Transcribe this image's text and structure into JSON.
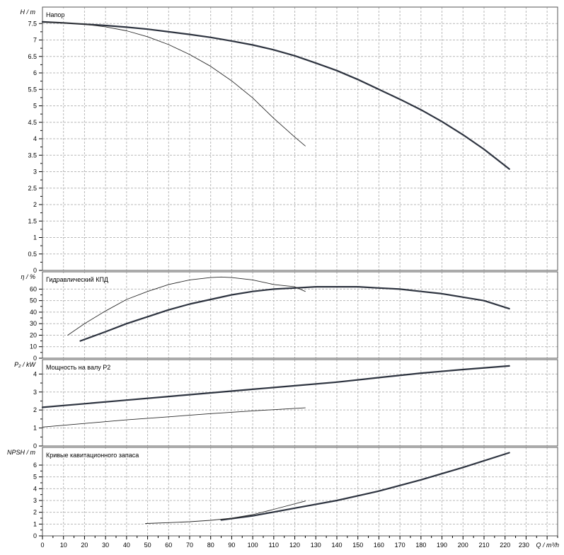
{
  "chart_data": [
    {
      "type": "line",
      "title": "Напор",
      "ylabel": "H / m",
      "ylim": [
        0,
        8
      ],
      "y_ticks": [
        "0",
        "0.5",
        "1",
        "1.5",
        "2",
        "2.5",
        "3",
        "3.5",
        "4",
        "4.5",
        "5",
        "5.5",
        "6",
        "6.5",
        "7",
        "7.5"
      ],
      "grid": true,
      "series": [
        {
          "curve": "bold",
          "x": [
            0,
            10,
            20,
            30,
            40,
            50,
            60,
            70,
            80,
            90,
            100,
            110,
            120,
            130,
            140,
            150,
            160,
            170,
            180,
            190,
            200,
            210,
            222
          ],
          "y": [
            7.55,
            7.52,
            7.48,
            7.44,
            7.39,
            7.33,
            7.25,
            7.17,
            7.08,
            6.97,
            6.85,
            6.7,
            6.52,
            6.3,
            6.07,
            5.8,
            5.5,
            5.2,
            4.88,
            4.52,
            4.12,
            3.68,
            3.08
          ]
        },
        {
          "curve": "thin",
          "x": [
            0,
            10,
            20,
            30,
            40,
            50,
            60,
            70,
            80,
            90,
            100,
            110,
            120,
            125
          ],
          "y": [
            7.55,
            7.52,
            7.48,
            7.4,
            7.28,
            7.1,
            6.86,
            6.56,
            6.2,
            5.76,
            5.24,
            4.62,
            4.05,
            3.78
          ]
        }
      ]
    },
    {
      "type": "line",
      "title": "Гидравлический КПД",
      "ylabel": "η / %",
      "ylim": [
        0,
        75
      ],
      "y_ticks": [
        "0",
        "10",
        "20",
        "30",
        "40",
        "50",
        "60"
      ],
      "grid": true,
      "series": [
        {
          "curve": "bold",
          "x": [
            18,
            30,
            40,
            50,
            60,
            70,
            80,
            90,
            100,
            110,
            120,
            130,
            140,
            150,
            160,
            170,
            180,
            190,
            200,
            210,
            222
          ],
          "y": [
            15,
            23,
            30,
            36,
            42,
            47,
            51,
            55,
            58,
            60,
            61,
            62,
            62,
            62,
            61,
            60,
            58,
            56,
            53,
            50,
            43
          ]
        },
        {
          "curve": "thin",
          "x": [
            12,
            20,
            30,
            40,
            50,
            60,
            70,
            80,
            85,
            90,
            100,
            110,
            120,
            125
          ],
          "y": [
            20,
            30,
            41,
            51,
            58,
            64,
            68,
            70,
            70.5,
            70,
            68,
            64,
            62,
            58
          ]
        }
      ]
    },
    {
      "type": "line",
      "title": "Мощность на валу P2",
      "ylabel": "P₂ / kW",
      "ylim": [
        0,
        4.8
      ],
      "y_ticks": [
        "0",
        "1",
        "2",
        "3",
        "4"
      ],
      "grid": true,
      "series": [
        {
          "curve": "bold",
          "x": [
            0,
            20,
            40,
            60,
            80,
            100,
            120,
            140,
            160,
            180,
            200,
            222
          ],
          "y": [
            2.15,
            2.35,
            2.55,
            2.75,
            2.95,
            3.15,
            3.35,
            3.55,
            3.8,
            4.05,
            4.25,
            4.45
          ]
        },
        {
          "curve": "thin",
          "x": [
            0,
            20,
            40,
            60,
            80,
            100,
            125
          ],
          "y": [
            1.05,
            1.25,
            1.45,
            1.62,
            1.8,
            1.95,
            2.12
          ]
        }
      ]
    },
    {
      "type": "line",
      "title": "Кривые кавитационного запаса",
      "ylabel": "NPSH / m",
      "ylim": [
        0,
        7.5
      ],
      "y_ticks": [
        "0",
        "1",
        "2",
        "3",
        "4",
        "5",
        "6"
      ],
      "x_ticks": [
        "0",
        "10",
        "20",
        "30",
        "40",
        "50",
        "60",
        "70",
        "80",
        "90",
        "100",
        "110",
        "120",
        "130",
        "140",
        "150",
        "160",
        "170",
        "180",
        "190",
        "200",
        "210",
        "220",
        "230"
      ],
      "xlabel": "Q / m³/h",
      "xlim": [
        0,
        245
      ],
      "grid": true,
      "series": [
        {
          "curve": "bold",
          "x": [
            85,
            100,
            120,
            140,
            160,
            180,
            200,
            222
          ],
          "y": [
            1.35,
            1.7,
            2.35,
            3.0,
            3.8,
            4.75,
            5.8,
            7.05
          ]
        },
        {
          "curve": "thin",
          "x": [
            49,
            60,
            70,
            80,
            90,
            100,
            110,
            125
          ],
          "y": [
            1.05,
            1.12,
            1.2,
            1.32,
            1.5,
            1.8,
            2.25,
            2.95
          ]
        }
      ]
    }
  ]
}
